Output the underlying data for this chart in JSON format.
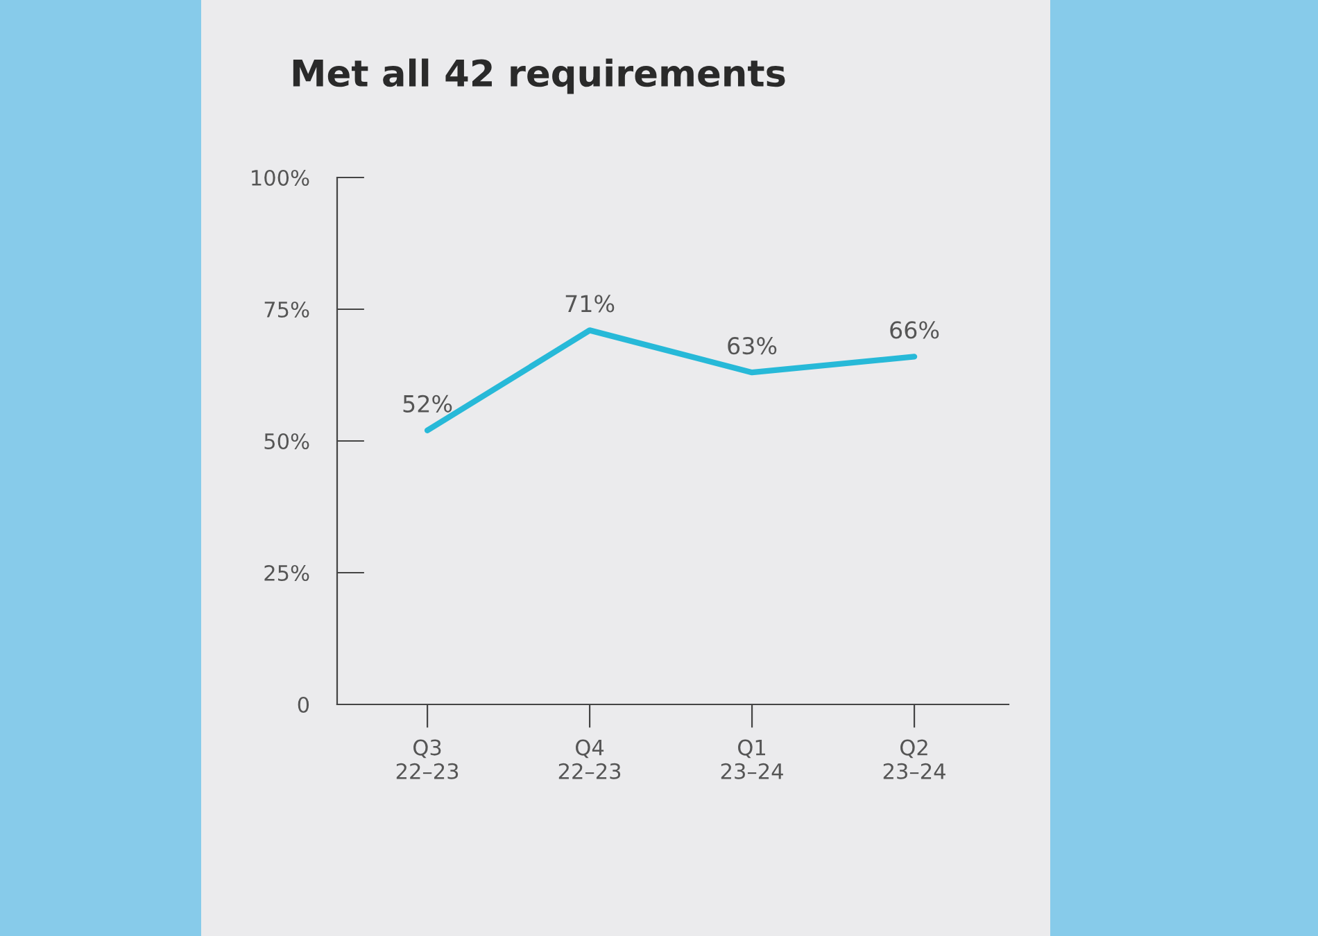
{
  "chart_data": {
    "type": "line",
    "title": "Met all 42 requirements",
    "categories": [
      "Q3\n22–23",
      "Q4\n22–23",
      "Q1\n23–24",
      "Q2\n23–24"
    ],
    "series": [
      {
        "color": "#27b9d8",
        "values": [
          52,
          71,
          63,
          66
        ],
        "value_labels": [
          "52%",
          "71%",
          "63%",
          "66%"
        ]
      }
    ],
    "ylim": [
      0,
      100
    ],
    "yticks": [
      {
        "value": 0,
        "label": "0"
      },
      {
        "value": 25,
        "label": "25%"
      },
      {
        "value": 50,
        "label": "50%"
      },
      {
        "value": 75,
        "label": "75%"
      },
      {
        "value": 100,
        "label": "100%"
      }
    ],
    "line_style": "solid"
  }
}
